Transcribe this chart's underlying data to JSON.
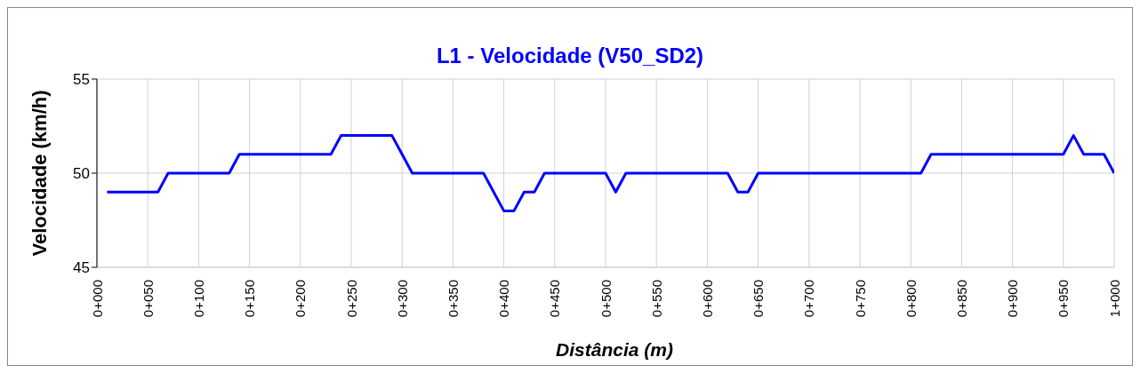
{
  "chart_data": {
    "type": "line",
    "title": "L1 - Velocidade (V50_SD2)",
    "xlabel": "Distância (m)",
    "ylabel": "Velocidade (km/h)",
    "categories": [
      "0+000",
      null,
      null,
      null,
      null,
      "0+050",
      null,
      null,
      null,
      null,
      "0+100",
      null,
      null,
      null,
      null,
      "0+150",
      null,
      null,
      null,
      null,
      "0+200",
      null,
      null,
      null,
      null,
      "0+250",
      null,
      null,
      null,
      null,
      "0+300",
      null,
      null,
      null,
      null,
      "0+350",
      null,
      null,
      null,
      null,
      "0+400",
      null,
      null,
      null,
      null,
      "0+450",
      null,
      null,
      null,
      null,
      "0+500",
      null,
      null,
      null,
      null,
      "0+550",
      null,
      null,
      null,
      null,
      "0+600",
      null,
      null,
      null,
      null,
      "0+650",
      null,
      null,
      null,
      null,
      "0+700",
      null,
      null,
      null,
      null,
      "0+750",
      null,
      null,
      null,
      null,
      "0+800",
      null,
      null,
      null,
      null,
      "0+850",
      null,
      null,
      null,
      null,
      "0+900",
      null,
      null,
      null,
      null,
      "0+950",
      null,
      null,
      null,
      null,
      "1+000"
    ],
    "series": [
      {
        "color": "#0000ff",
        "values": [
          null,
          49,
          49,
          49,
          49,
          49,
          49,
          50,
          50,
          50,
          50,
          50,
          50,
          50,
          51,
          51,
          51,
          51,
          51,
          51,
          51,
          51,
          51,
          51,
          52,
          52,
          52,
          52,
          52,
          52,
          51,
          50,
          50,
          50,
          50,
          50,
          50,
          50,
          50,
          49,
          48,
          48,
          49,
          49,
          50,
          50,
          50,
          50,
          50,
          50,
          50,
          49,
          50,
          50,
          50,
          50,
          50,
          50,
          50,
          50,
          50,
          50,
          50,
          49,
          49,
          50,
          50,
          50,
          50,
          50,
          50,
          50,
          50,
          50,
          50,
          50,
          50,
          50,
          50,
          50,
          50,
          50,
          51,
          51,
          51,
          51,
          51,
          51,
          51,
          51,
          51,
          51,
          51,
          51,
          51,
          51,
          52,
          51,
          51,
          51,
          50
        ]
      }
    ],
    "ylim": [
      45,
      55
    ],
    "yticks": [
      45,
      50,
      55
    ],
    "grid": true,
    "marker": "none",
    "line_style": "solid"
  }
}
